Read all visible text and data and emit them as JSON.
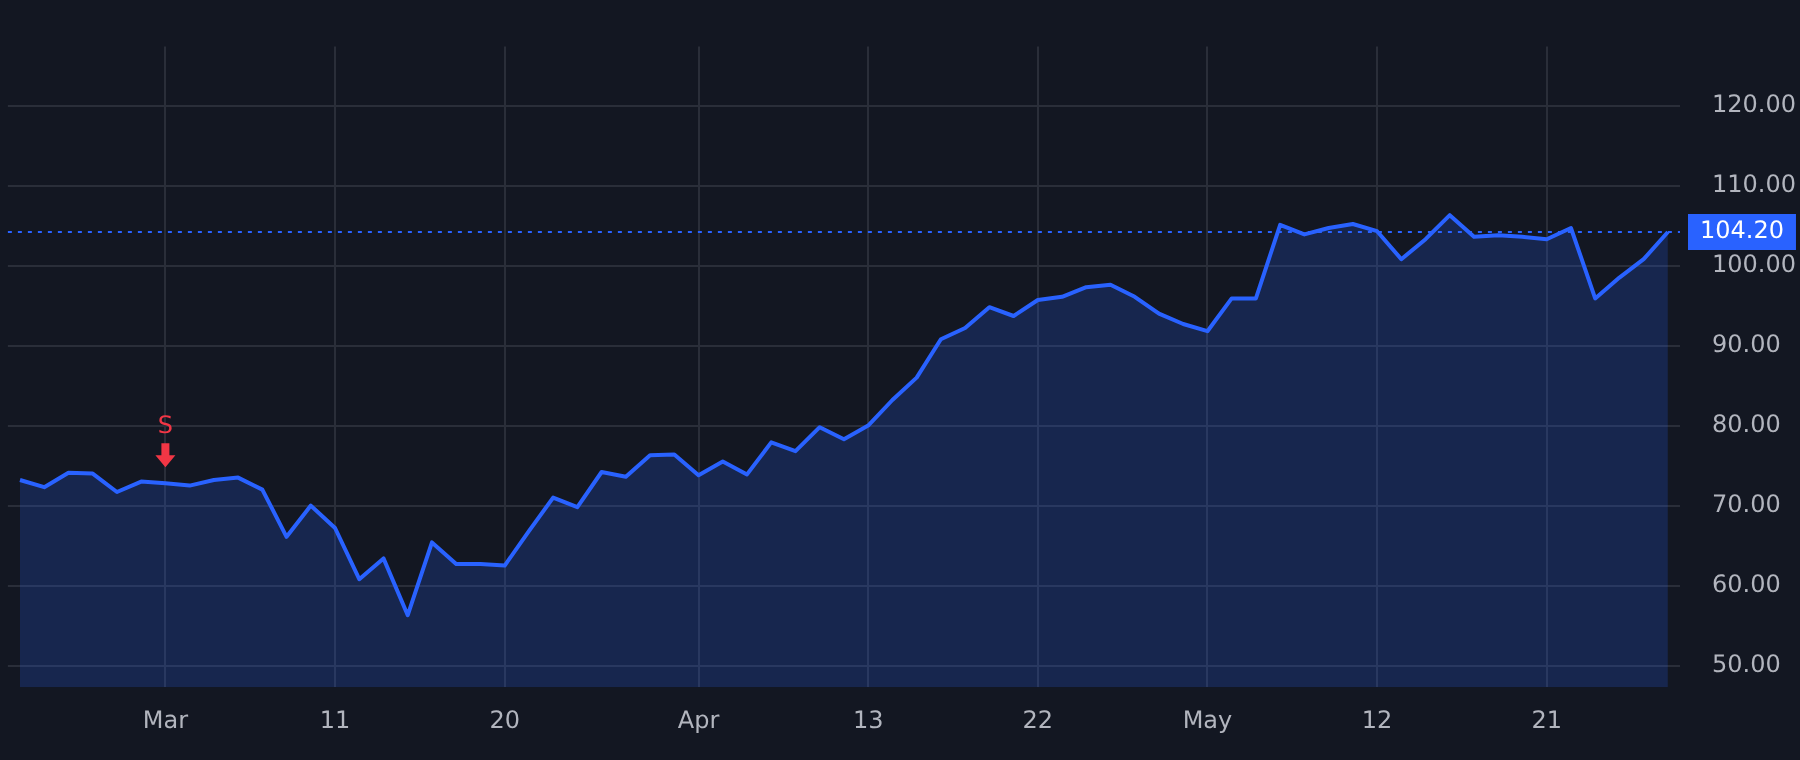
{
  "chart_data": {
    "type": "area",
    "categories": [
      null,
      null,
      null,
      null,
      null,
      null,
      "Mar",
      null,
      null,
      null,
      null,
      null,
      null,
      "11",
      null,
      null,
      null,
      null,
      null,
      null,
      "20",
      null,
      null,
      null,
      null,
      null,
      null,
      null,
      "Apr",
      null,
      null,
      null,
      null,
      null,
      null,
      "13",
      null,
      null,
      null,
      null,
      null,
      null,
      "22",
      null,
      null,
      null,
      null,
      null,
      null,
      "May",
      null,
      null,
      null,
      null,
      null,
      null,
      "12",
      null,
      null,
      null,
      null,
      null,
      null,
      "21",
      null,
      null,
      null,
      null,
      null
    ],
    "series": [
      {
        "color": "#2962ff",
        "values": [
          73.2,
          72.3,
          74.1,
          74.0,
          71.7,
          73.0,
          72.8,
          72.5,
          73.2,
          73.5,
          72.0,
          66.1,
          70.0,
          67.2,
          60.8,
          63.4,
          56.3,
          65.4,
          62.7,
          62.7,
          62.5,
          66.8,
          71.0,
          69.8,
          74.2,
          73.6,
          76.3,
          76.4,
          73.8,
          75.5,
          73.9,
          77.9,
          76.8,
          79.8,
          78.3,
          80.0,
          83.2,
          86.0,
          90.8,
          92.2,
          94.8,
          93.7,
          95.7,
          96.1,
          97.3,
          97.6,
          96.1,
          94.0,
          92.7,
          91.8,
          95.9,
          95.9,
          105.1,
          103.9,
          104.7,
          105.2,
          104.3,
          100.8,
          103.3,
          106.3,
          103.6,
          103.8,
          103.6,
          103.3,
          104.7,
          95.9,
          98.5,
          100.8,
          104.2
        ]
      }
    ],
    "ylim": [
      47.3,
      127.4
    ],
    "yticks": [
      {
        "value": 50,
        "label": "50.00"
      },
      {
        "value": 60,
        "label": "60.00"
      },
      {
        "value": 70,
        "label": "70.00"
      },
      {
        "value": 80,
        "label": "80.00"
      },
      {
        "value": 90,
        "label": "90.00"
      },
      {
        "value": 100,
        "label": "100.00"
      },
      {
        "value": 110,
        "label": "110.00"
      },
      {
        "value": 120,
        "label": "120.00"
      }
    ],
    "grid": true,
    "ref_lines": [
      {
        "axis": "y",
        "value": 104.2,
        "label": "104.20",
        "color": "#2962ff",
        "line_style": "dotted"
      }
    ],
    "annotations": [
      {
        "text": "S",
        "x": "Mar",
        "y": 72.8
      }
    ]
  }
}
